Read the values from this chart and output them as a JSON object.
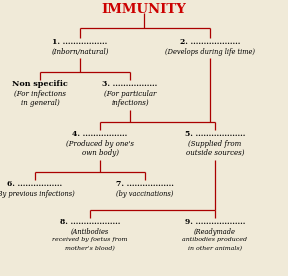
{
  "title": "IMMUNITY",
  "title_color": "#cc0000",
  "bg_color": "#f0ead8",
  "line_color": "#aa0000",
  "lw": 0.9,
  "nodes": {
    "n1_label": "1. .................",
    "n1_sub": "(Inborn/natural)",
    "n2_label": "2. ...................",
    "n2_sub": "(Develops during life time)",
    "nonspec_label": "Non specific",
    "nonspec_sub1": "(For infections",
    "nonspec_sub2": "in general)",
    "n3_label": "3. .................",
    "n3_sub1": "(For particular",
    "n3_sub2": "infections)",
    "n4_label": "4. .................",
    "n4_sub1": "(Produced by one's",
    "n4_sub2": "own body)",
    "n5_label": "5. ...................",
    "n5_sub1": "(Supplied from",
    "n5_sub2": "outside sources)",
    "n6_label": "6. .................",
    "n6_sub": "(By previous infections)",
    "n7_label": "7. ..................",
    "n7_sub": "(by vaccinations)",
    "n8_label": "8. ...................",
    "n8_sub1": "(Antibodies",
    "n8_sub2": "received by foetus from",
    "n8_sub3": "mother's blood)",
    "n9_label": "9. ...................",
    "n9_sub1": "(Readymade",
    "n9_sub2": "antibodies produced",
    "n9_sub3": "in other animals)"
  }
}
